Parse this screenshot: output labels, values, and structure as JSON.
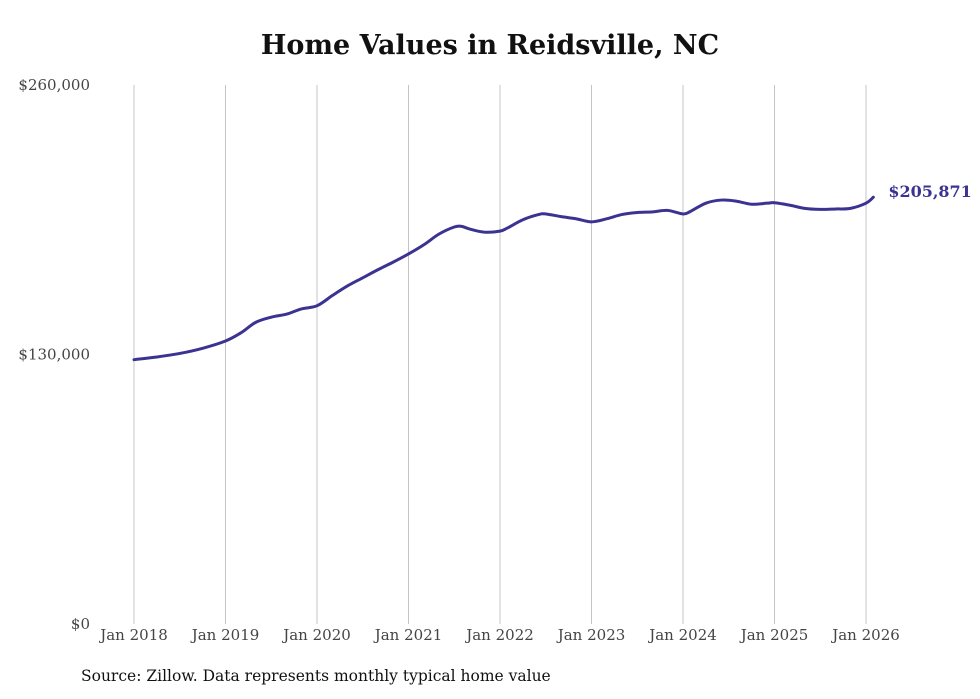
{
  "chart_data": {
    "type": "line",
    "title": "Home Values in Reidsville, NC",
    "xlabel": "",
    "ylabel": "",
    "ylim": [
      0,
      260000
    ],
    "grid": "vertical",
    "line_color": "#3b3391",
    "y_ticks": [
      {
        "value": 0,
        "label": "$0"
      },
      {
        "value": 130000,
        "label": "$130,000"
      },
      {
        "value": 260000,
        "label": "$260,000"
      }
    ],
    "x_ticks": [
      {
        "value": 2018.0,
        "label": "Jan 2018"
      },
      {
        "value": 2019.0,
        "label": "Jan 2019"
      },
      {
        "value": 2020.0,
        "label": "Jan 2020"
      },
      {
        "value": 2021.0,
        "label": "Jan 2021"
      },
      {
        "value": 2022.0,
        "label": "Jan 2022"
      },
      {
        "value": 2023.0,
        "label": "Jan 2023"
      },
      {
        "value": 2024.0,
        "label": "Jan 2024"
      },
      {
        "value": 2025.0,
        "label": "Jan 2025"
      },
      {
        "value": 2026.0,
        "label": "Jan 2026"
      }
    ],
    "series": [
      {
        "name": "Typical home value",
        "x": [
          2018.0,
          2018.25,
          2018.5,
          2018.75,
          2019.0,
          2019.17,
          2019.33,
          2019.5,
          2019.67,
          2019.83,
          2020.0,
          2020.17,
          2020.33,
          2020.5,
          2020.67,
          2020.83,
          2021.0,
          2021.17,
          2021.33,
          2021.5,
          2021.58,
          2021.67,
          2021.83,
          2022.0,
          2022.08,
          2022.25,
          2022.42,
          2022.5,
          2022.67,
          2022.83,
          2023.0,
          2023.17,
          2023.33,
          2023.5,
          2023.67,
          2023.83,
          2024.0,
          2024.08,
          2024.25,
          2024.42,
          2024.58,
          2024.75,
          2024.92,
          2025.0,
          2025.17,
          2025.33,
          2025.5,
          2025.67,
          2025.83,
          2026.0,
          2026.08
        ],
        "values": [
          127500,
          128800,
          130500,
          133000,
          136500,
          140500,
          145500,
          148000,
          149500,
          152000,
          153500,
          158500,
          163000,
          167000,
          171000,
          174500,
          178500,
          183000,
          188000,
          191500,
          191800,
          190500,
          189000,
          189500,
          191000,
          195000,
          197500,
          197800,
          196500,
          195500,
          194000,
          195500,
          197500,
          198500,
          198800,
          199500,
          197800,
          199000,
          203000,
          204500,
          204000,
          202500,
          203000,
          203200,
          202000,
          200500,
          200000,
          200200,
          200500,
          203000,
          205871
        ]
      }
    ],
    "end_label": "$205,871",
    "source": "Source: Zillow. Data represents monthly typical home value"
  }
}
